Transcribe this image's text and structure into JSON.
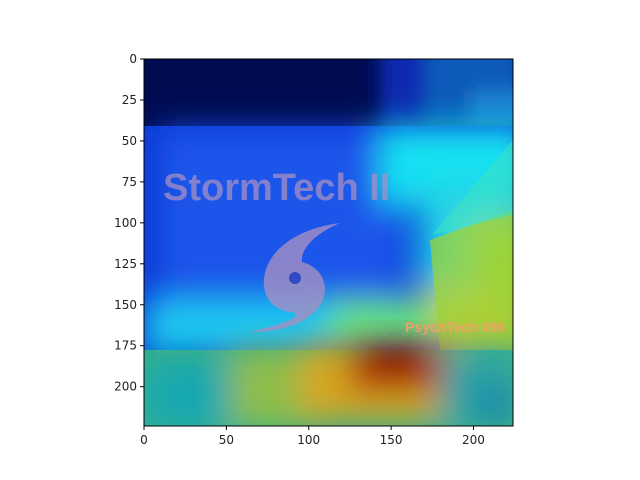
{
  "chart_data": {
    "type": "heatmap",
    "title": "",
    "xlabel": "",
    "ylabel": "",
    "xlim": [
      0,
      224
    ],
    "ylim": [
      224,
      0
    ],
    "x_ticks": [
      0,
      50,
      100,
      150,
      200
    ],
    "y_ticks": [
      0,
      25,
      50,
      75,
      100,
      125,
      150,
      175,
      200
    ],
    "x_tick_labels": [
      "0",
      "50",
      "100",
      "150",
      "200"
    ],
    "y_tick_labels": [
      "0",
      "25",
      "50",
      "75",
      "100",
      "125",
      "150",
      "175",
      "200"
    ],
    "colormap": "jet",
    "grid": false,
    "image_content": {
      "logo_text": "StormTech II",
      "caption_text": "PsychTech #98",
      "logo_icon": "hurricane-icon"
    },
    "colors": {
      "dark_navy": "#000b52",
      "deep_blue": "#0a3bd6",
      "blue": "#1f55ea",
      "cyan": "#12e2f2",
      "green_yellow": "#a6d82c",
      "dark_red": "#8c0a00",
      "teal": "#1aa8a0",
      "logo_overlay": "#a58fc4"
    }
  }
}
